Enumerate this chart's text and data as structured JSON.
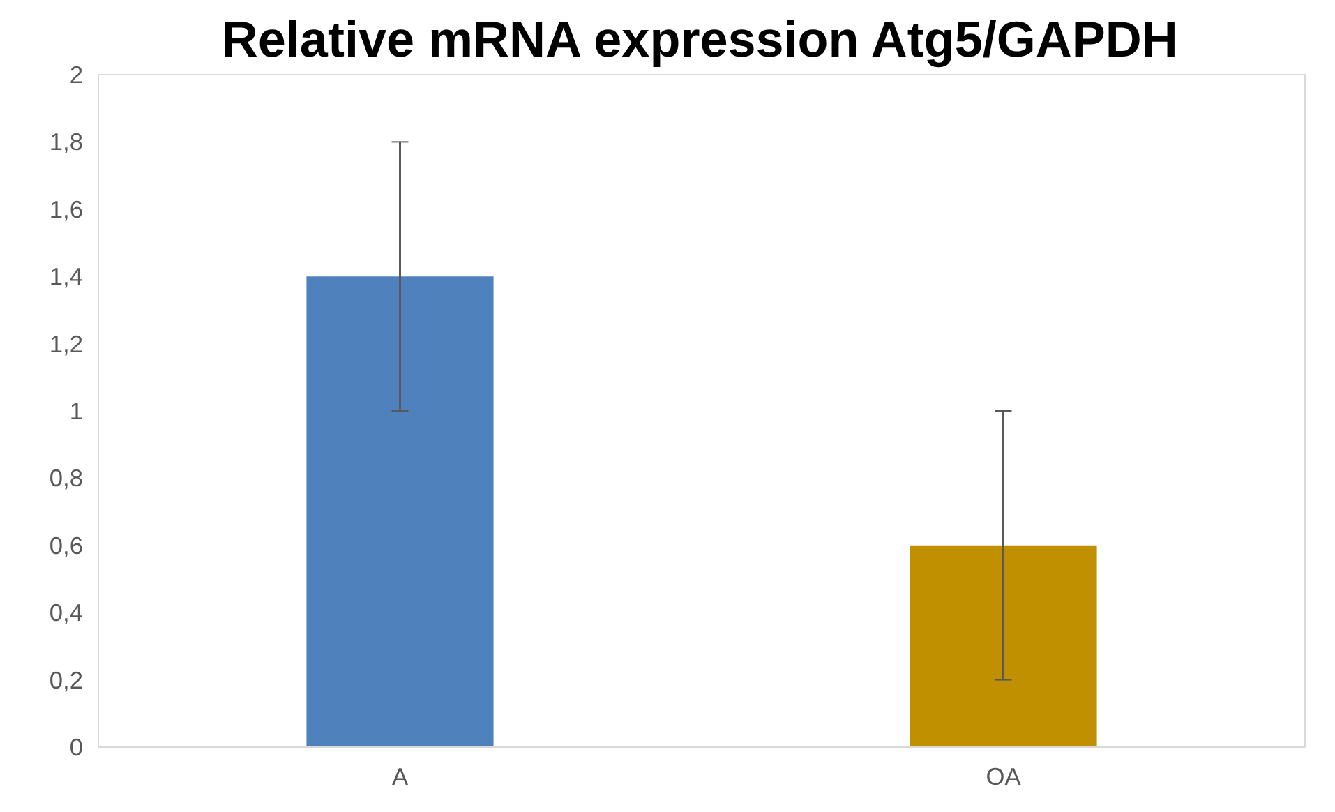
{
  "chart_data": {
    "type": "bar",
    "title": "Relative mRNA expression Atg5/GAPDH",
    "categories": [
      "A",
      "OA"
    ],
    "values": [
      1.4,
      0.6
    ],
    "colors": [
      "#4f81bd",
      "#c09000"
    ],
    "errors": [
      0.4,
      0.4
    ],
    "ylim": [
      0,
      2
    ],
    "yticks": [
      0,
      {
        "value": 0.2,
        "label": "0,2"
      },
      {
        "value": 0.4,
        "label": "0,4"
      },
      {
        "value": 0.6,
        "label": "0,6"
      },
      {
        "value": 0.8,
        "label": "0,8"
      },
      1,
      {
        "value": 1.2,
        "label": "1,2"
      },
      {
        "value": 1.4,
        "label": "1,4"
      },
      {
        "value": 1.6,
        "label": "1,6"
      },
      {
        "value": 1.8,
        "label": "1,8"
      },
      2
    ],
    "grid": false
  }
}
